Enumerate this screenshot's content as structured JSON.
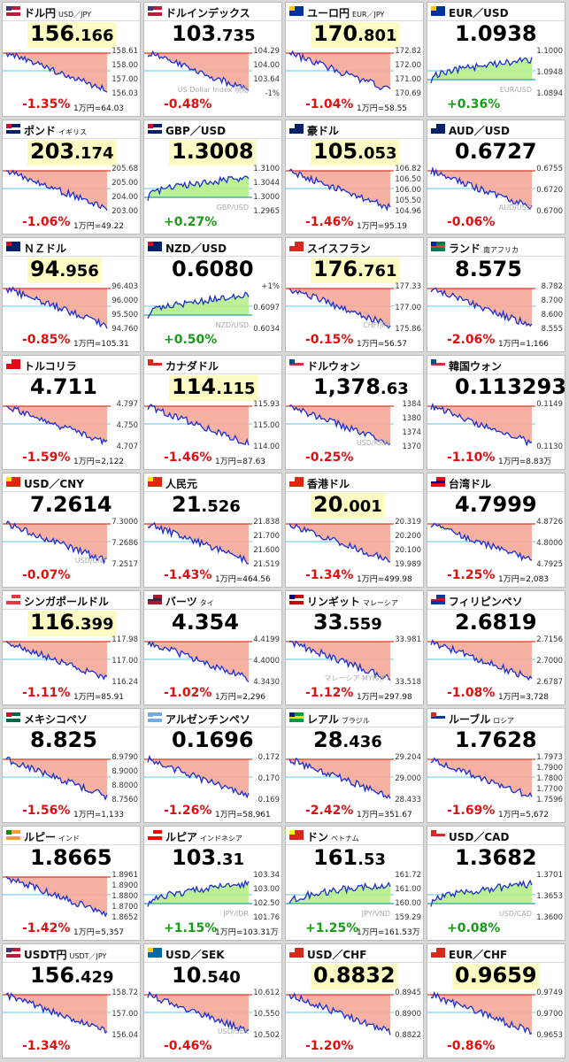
{
  "tiles": [
    {
      "name": "ドル円",
      "sub": "USD／JPY",
      "price": "156",
      "price_dec": ".166",
      "highlight": true,
      "axis": [
        "158.61",
        "158.00",
        "157.00",
        "156.03"
      ],
      "change": "-1.35%",
      "yen": "1万円=64.03",
      "flag": [
        "#b22234",
        "#ffffff",
        "#3c3b6e"
      ]
    },
    {
      "name": "ドルインデックス",
      "price": "103",
      "price_dec": ".735",
      "highlight": false,
      "axis": [
        "104.29",
        "104.00",
        "103.64",
        "-1%"
      ],
      "watermark": "US Dollar Index 現物",
      "change": "-0.48%",
      "flag": [
        "#b22234",
        "#ffffff",
        "#3c3b6e"
      ]
    },
    {
      "name": "ユーロ円",
      "sub": "EUR／JPY",
      "price": "170",
      "price_dec": ".801",
      "highlight": true,
      "axis": [
        "172.82",
        "172.00",
        "171.00",
        "170.69"
      ],
      "change": "-1.04%",
      "yen": "1万円=58.55",
      "flag": [
        "#003399",
        "#003399",
        "#ffcc00"
      ]
    },
    {
      "name": "EUR／USD",
      "price": "1.0938",
      "highlight": false,
      "axis": [
        "1.1000",
        "1.0948",
        "1.0894"
      ],
      "watermark": "EUR/USD",
      "change": "+0.36%",
      "flag": [
        "#003399",
        "#003399",
        "#ffcc00"
      ]
    },
    {
      "name": "ポンド",
      "sub": "イギリス",
      "price": "203",
      "price_dec": ".174",
      "highlight": true,
      "axis": [
        "205.68",
        "205.00",
        "204.00",
        "203.00"
      ],
      "change": "-1.06%",
      "yen": "1万円=49.22",
      "flag": [
        "#012169",
        "#ffffff",
        "#c8102e"
      ]
    },
    {
      "name": "GBP／USD",
      "price": "1.3008",
      "highlight": true,
      "axis": [
        "1.3100",
        "1.3044",
        "1.3000",
        "1.2965"
      ],
      "watermark": "GBP/USD",
      "change": "+0.27%",
      "flag": [
        "#012169",
        "#ffffff",
        "#c8102e"
      ]
    },
    {
      "name": "豪ドル",
      "price": "105",
      "price_dec": ".053",
      "highlight": true,
      "axis": [
        "106.82",
        "106.50",
        "106.00",
        "105.50",
        "104.96"
      ],
      "change": "-1.46%",
      "yen": "1万円=95.19",
      "flag": [
        "#012169",
        "#012169",
        "#ffffff"
      ]
    },
    {
      "name": "AUD／USD",
      "price": "0.6727",
      "highlight": false,
      "axis": [
        "0.6755",
        "0.6720",
        "0.6700"
      ],
      "watermark": "AUD/USD",
      "change": "-0.06%",
      "flag": [
        "#012169",
        "#012169",
        "#ffffff"
      ]
    },
    {
      "name": "ＮＺドル",
      "price": "94",
      "price_dec": ".956",
      "highlight": true,
      "axis": [
        "96.403",
        "96.000",
        "95.500",
        "94.760"
      ],
      "change": "-0.85%",
      "yen": "1万円=105.31",
      "flag": [
        "#012169",
        "#012169",
        "#c8102e"
      ]
    },
    {
      "name": "NZD／USD",
      "price": "0.6080",
      "highlight": false,
      "axis": [
        "+1%",
        "0.6097",
        "0.6034"
      ],
      "watermark": "NZD/USD",
      "change": "+0.50%",
      "flag": [
        "#012169",
        "#012169",
        "#c8102e"
      ]
    },
    {
      "name": "スイスフラン",
      "price": "176",
      "price_dec": ".761",
      "highlight": true,
      "axis": [
        "177.33",
        "177.00",
        "175.86"
      ],
      "watermark": "CHF/JPY",
      "change": "-0.15%",
      "yen": "1万円=56.57",
      "flag": [
        "#d52b1e",
        "#d52b1e",
        "#ffffff"
      ]
    },
    {
      "name": "ランド",
      "sub": "南アフリカ",
      "price": "8.575",
      "highlight": false,
      "axis": [
        "8.782",
        "8.700",
        "8.600",
        "8.555"
      ],
      "change": "-2.06%",
      "yen": "1万円=1,166",
      "flag": [
        "#007a4d",
        "#de3831",
        "#002395"
      ]
    },
    {
      "name": "トルコリラ",
      "price": "4.711",
      "highlight": false,
      "axis": [
        "4.797",
        "4.750",
        "4.707"
      ],
      "change": "-1.59%",
      "yen": "1万円=2,122",
      "flag": [
        "#e30a17",
        "#e30a17",
        "#ffffff"
      ]
    },
    {
      "name": "カナダドル",
      "price": "114",
      "price_dec": ".115",
      "highlight": true,
      "axis": [
        "115.93",
        "115.00",
        "114.00"
      ],
      "change": "-1.46%",
      "yen": "1万円=87.63",
      "flag": [
        "#ffffff",
        "#d52b1e",
        "#d52b1e"
      ]
    },
    {
      "name": "ドルウォン",
      "price": "1,378",
      "price_dec": ".63",
      "highlight": false,
      "axis": [
        "1384",
        "1380",
        "1374",
        "1370"
      ],
      "watermark": "USD/KRW",
      "change": "-0.25%",
      "flag": [
        "#ffffff",
        "#cd2e3a",
        "#0047a0"
      ]
    },
    {
      "name": "韓国ウォン",
      "price": "0.113293",
      "highlight": false,
      "axis": [
        "0.1149",
        "0.1130"
      ],
      "change": "-1.10%",
      "yen": "1万円=8.83万",
      "flag": [
        "#ffffff",
        "#cd2e3a",
        "#0047a0"
      ]
    },
    {
      "name": "USD／CNY",
      "price": "7.2614",
      "highlight": false,
      "axis": [
        "7.3000",
        "7.2686",
        "7.2517"
      ],
      "watermark": "USD/CNY",
      "change": "-0.07%",
      "flag": [
        "#de2910",
        "#de2910",
        "#ffde00"
      ]
    },
    {
      "name": "人民元",
      "price": "21",
      "price_dec": ".526",
      "highlight": false,
      "axis": [
        "21.838",
        "21.700",
        "21.600",
        "21.519"
      ],
      "change": "-1.43%",
      "yen": "1万円=464.56",
      "flag": [
        "#de2910",
        "#de2910",
        "#ffde00"
      ]
    },
    {
      "name": "香港ドル",
      "price": "20",
      "price_dec": ".001",
      "highlight": true,
      "axis": [
        "20.319",
        "20.200",
        "20.100",
        "19.989"
      ],
      "change": "-1.34%",
      "yen": "1万円=499.98",
      "flag": [
        "#de2910",
        "#de2910",
        "#ffffff"
      ]
    },
    {
      "name": "台湾ドル",
      "price": "4.7999",
      "highlight": false,
      "axis": [
        "4.8726",
        "4.8000",
        "4.7925"
      ],
      "change": "-1.25%",
      "yen": "1万円=2,083",
      "flag": [
        "#fe0000",
        "#000095",
        "#ffffff"
      ]
    },
    {
      "name": "シンガポールドル",
      "price": "116",
      "price_dec": ".399",
      "highlight": true,
      "axis": [
        "117.98",
        "117.00",
        "116.24"
      ],
      "change": "-1.11%",
      "yen": "1万円=85.91",
      "flag": [
        "#ef3340",
        "#ffffff",
        "#ffffff"
      ]
    },
    {
      "name": "バーツ",
      "sub": "タイ",
      "price": "4.354",
      "highlight": false,
      "axis": [
        "4.4199",
        "4.4000",
        "4.3430"
      ],
      "change": "-1.02%",
      "yen": "1万円=2,296",
      "flag": [
        "#a51931",
        "#2d2a4a",
        "#f4f5f8"
      ]
    },
    {
      "name": "リンギット",
      "sub": "マレーシア",
      "price": "33",
      "price_dec": ".559",
      "highlight": false,
      "axis": [
        "33.981",
        "33.518"
      ],
      "watermark": "マレーシア MYR/JPY",
      "change": "-1.12%",
      "yen": "1万円=297.98",
      "flag": [
        "#cc0001",
        "#ffffff",
        "#010066"
      ]
    },
    {
      "name": "フィリピンペソ",
      "price": "2.6819",
      "highlight": false,
      "axis": [
        "2.7156",
        "2.7000",
        "2.6787"
      ],
      "change": "-1.08%",
      "yen": "1万円=3,728",
      "flag": [
        "#0038a8",
        "#ce1126",
        "#ffffff"
      ]
    },
    {
      "name": "メキシコペソ",
      "price": "8.825",
      "highlight": false,
      "axis": [
        "8.9790",
        "8.9000",
        "8.8000",
        "8.7560"
      ],
      "change": "-1.56%",
      "yen": "1万円=1,133",
      "flag": [
        "#006847",
        "#ffffff",
        "#ce1126"
      ]
    },
    {
      "name": "アルゼンチンペソ",
      "price": "0.1696",
      "highlight": false,
      "axis": [
        "0.172",
        "0.170",
        "0.169"
      ],
      "change": "-1.26%",
      "yen": "1万円=58,961",
      "flag": [
        "#74acdf",
        "#ffffff",
        "#74acdf"
      ]
    },
    {
      "name": "レアル",
      "sub": "ブラジル",
      "price": "28",
      "price_dec": ".436",
      "highlight": false,
      "axis": [
        "29.204",
        "29.000",
        "28.433"
      ],
      "change": "-2.42%",
      "yen": "1万円=351.67",
      "flag": [
        "#009c3b",
        "#ffdf00",
        "#002776"
      ]
    },
    {
      "name": "ルーブル",
      "sub": "ロシア",
      "price": "1.7628",
      "highlight": false,
      "axis": [
        "1.7973",
        "1.7900",
        "1.7800",
        "1.7700",
        "1.7596"
      ],
      "change": "-1.69%",
      "yen": "1万円=5,672",
      "flag": [
        "#ffffff",
        "#0039a6",
        "#d52b1e"
      ]
    },
    {
      "name": "ルピー",
      "sub": "インド",
      "price": "1.8665",
      "highlight": false,
      "axis": [
        "1.8961",
        "1.8900",
        "1.8800",
        "1.8700",
        "1.8652"
      ],
      "change": "-1.42%",
      "yen": "1万円=5,357",
      "flag": [
        "#ff9933",
        "#ffffff",
        "#138808"
      ]
    },
    {
      "name": "ルピア",
      "sub": "インドネシア",
      "price": "103",
      "price_dec": ".31",
      "highlight": false,
      "axis": [
        "103.34",
        "103.00",
        "102.50",
        "101.76"
      ],
      "watermark": "JPY/IDR",
      "change": "+1.15%",
      "yen": "1万円=103.31万",
      "flag": [
        "#ff0000",
        "#ffffff",
        "#ffffff"
      ]
    },
    {
      "name": "ドン",
      "sub": "ベトナム",
      "price": "161",
      "price_dec": ".53",
      "highlight": false,
      "axis": [
        "161.72",
        "161.00",
        "160.00",
        "159.29"
      ],
      "watermark": "JPY/VND",
      "change": "+1.25%",
      "yen": "1万円=161.53万",
      "flag": [
        "#da251d",
        "#da251d",
        "#ffff00"
      ]
    },
    {
      "name": "USD／CAD",
      "price": "1.3682",
      "highlight": false,
      "axis": [
        "1.3701",
        "1.3653",
        "1.3600"
      ],
      "watermark": "USD/CAD",
      "change": "+0.08%",
      "flag": [
        "#ffffff",
        "#d52b1e",
        "#d52b1e"
      ]
    },
    {
      "name": "USDT円",
      "sub": "USDT／JPY",
      "price": "156",
      "price_dec": ".429",
      "highlight": false,
      "axis": [
        "158.72",
        "157.00",
        "156.04"
      ],
      "change": "-1.34%",
      "flag": [
        "#b22234",
        "#ffffff",
        "#3c3b6e"
      ]
    },
    {
      "name": "USD／SEK",
      "price": "10",
      "price_dec": ".540",
      "highlight": false,
      "axis": [
        "10.612",
        "10.550",
        "10.502"
      ],
      "watermark": "USD/SEK",
      "change": "-0.46%",
      "flag": [
        "#006aa7",
        "#006aa7",
        "#fecc00"
      ]
    },
    {
      "name": "USD／CHF",
      "price": "0.8832",
      "highlight": true,
      "axis": [
        "0.8945",
        "0.8900",
        "0.8822"
      ],
      "change": "-1.20%",
      "flag": [
        "#d52b1e",
        "#d52b1e",
        "#ffffff"
      ]
    },
    {
      "name": "EUR／CHF",
      "price": "0.9659",
      "highlight": true,
      "axis": [
        "0.9749",
        "0.9700",
        "0.9653"
      ],
      "change": "-0.86%",
      "flag": [
        "#d52b1e",
        "#d52b1e",
        "#ffffff"
      ]
    }
  ]
}
